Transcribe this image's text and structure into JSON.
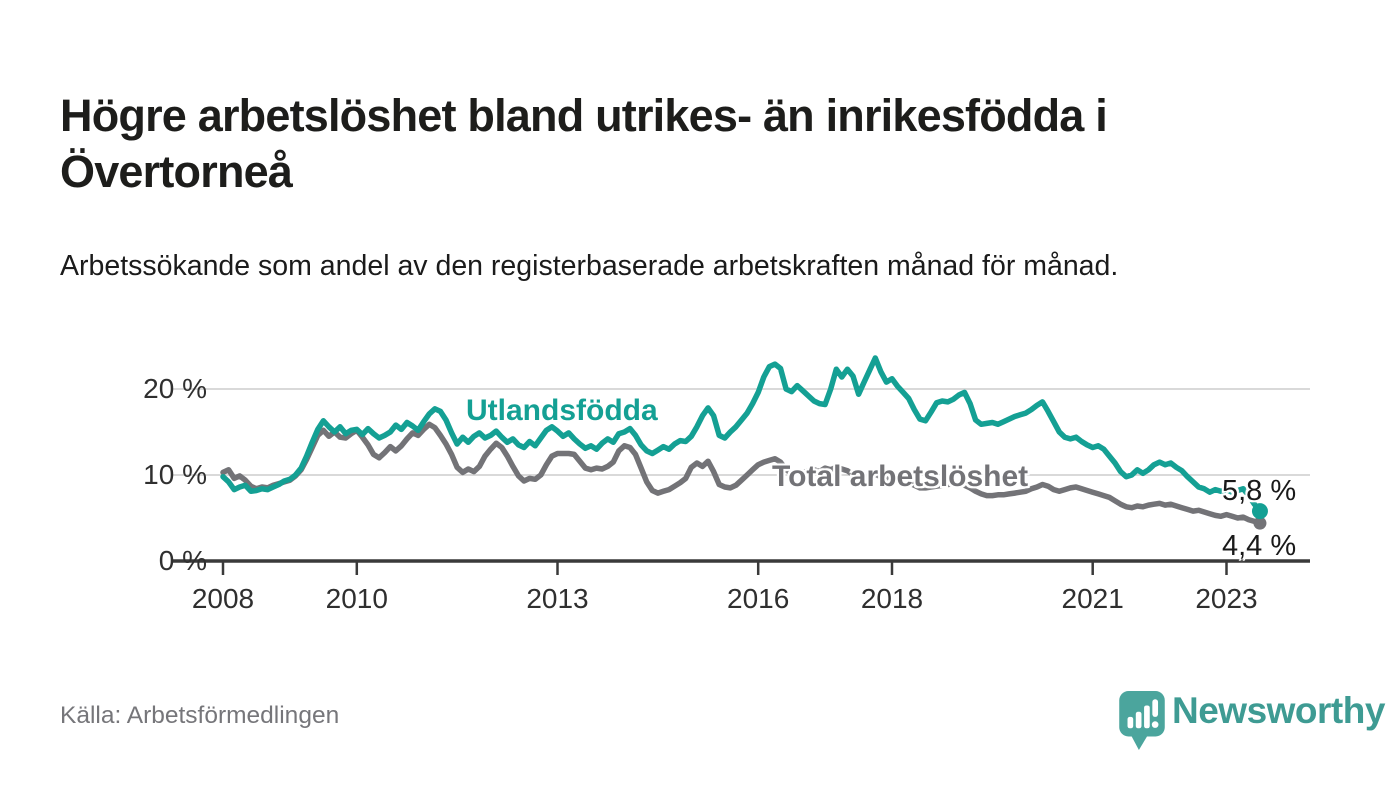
{
  "header": {
    "title": "Högre arbetslöshet bland utrikes- än inrikesfödda i Övertorneå",
    "subtitle": "Arbetssökande som andel av den registerbaserade arbetskraften månad för månad."
  },
  "footer": {
    "source": "Källa: Arbetsförmedlingen",
    "brand": "Newsworthy",
    "logo_icon": "newsworthy-speech-bubble-bar-chart-icon",
    "brand_color": "#3e9b93",
    "logo_color": "#4ba59d"
  },
  "chart_data": {
    "type": "line",
    "title": "Högre arbetslöshet bland utrikes- än inrikesfödda i Övertorneå",
    "xlabel": "",
    "ylabel": "",
    "unit": "%",
    "x_unit": "month",
    "x_range": [
      "2008-01",
      "2023-07"
    ],
    "x_ticks": [
      2008,
      2010,
      2013,
      2016,
      2018,
      2021,
      2023
    ],
    "y_ticks": [
      {
        "value": 20,
        "label": "20 %"
      },
      {
        "value": 10,
        "label": "10 %"
      },
      {
        "value": 0,
        "label": "0 %"
      }
    ],
    "ylim": [
      0,
      24
    ],
    "grid": "horizontal",
    "legend_position": "inline-labels",
    "axis_color": "#3a3a3a",
    "gridline_color": "#d9d9d9",
    "series": [
      {
        "name": "Utlandsfödda",
        "color": "#14a094",
        "end_label": "5,8 %",
        "end_value": 5.8,
        "values": [
          9.8,
          9.2,
          8.3,
          8.6,
          8.8,
          8.1,
          8.2,
          8.4,
          8.3,
          8.6,
          8.9,
          9.3,
          9.5,
          10.0,
          10.8,
          12.2,
          13.8,
          15.3,
          16.3,
          15.6,
          15.0,
          15.6,
          14.8,
          15.2,
          15.3,
          14.7,
          15.4,
          14.8,
          14.3,
          14.6,
          15.0,
          15.8,
          15.3,
          16.1,
          15.7,
          15.2,
          16.2,
          17.1,
          17.7,
          17.4,
          16.4,
          14.9,
          13.6,
          14.4,
          13.8,
          14.5,
          14.9,
          14.3,
          14.6,
          15.1,
          14.4,
          13.8,
          14.2,
          13.5,
          13.2,
          13.9,
          13.4,
          14.3,
          15.2,
          15.6,
          15.1,
          14.5,
          14.9,
          14.2,
          13.6,
          13.1,
          13.4,
          13.0,
          13.7,
          14.2,
          13.8,
          14.8,
          15.0,
          15.4,
          14.6,
          13.5,
          12.8,
          12.5,
          12.9,
          13.3,
          13.0,
          13.6,
          14.0,
          13.9,
          14.5,
          15.6,
          16.9,
          17.8,
          16.9,
          14.6,
          14.3,
          15.0,
          15.6,
          16.4,
          17.2,
          18.3,
          19.6,
          21.4,
          22.6,
          22.9,
          22.4,
          20.0,
          19.7,
          20.4,
          19.8,
          19.2,
          18.6,
          18.3,
          18.2,
          20.0,
          22.3,
          21.4,
          22.3,
          21.5,
          19.4,
          20.8,
          22.2,
          23.6,
          22.0,
          20.8,
          21.2,
          20.3,
          19.6,
          18.9,
          17.6,
          16.5,
          16.3,
          17.3,
          18.4,
          18.6,
          18.5,
          18.8,
          19.3,
          19.6,
          18.3,
          16.4,
          15.9,
          16.0,
          16.1,
          15.9,
          16.2,
          16.5,
          16.8,
          17.0,
          17.2,
          17.6,
          18.1,
          18.5,
          17.4,
          16.2,
          15.0,
          14.4,
          14.2,
          14.4,
          13.9,
          13.5,
          13.2,
          13.4,
          13.0,
          12.2,
          11.4,
          10.4,
          9.8,
          10.0,
          10.6,
          10.2,
          10.6,
          11.2,
          11.5,
          11.2,
          11.4,
          10.9,
          10.5,
          9.8,
          9.2,
          8.6,
          8.4,
          8.0,
          8.3,
          8.1,
          8.3,
          8.0,
          8.2,
          8.4,
          7.6,
          6.6,
          5.8
        ]
      },
      {
        "name": "Total arbetslöshet",
        "color": "#737377",
        "end_label": "4,4 %",
        "end_value": 4.4,
        "values": [
          10.3,
          10.6,
          9.6,
          9.9,
          9.4,
          8.7,
          8.4,
          8.6,
          8.5,
          8.8,
          9.0,
          9.2,
          9.4,
          9.9,
          10.6,
          11.8,
          13.2,
          14.6,
          15.2,
          14.5,
          15.0,
          14.4,
          14.3,
          14.8,
          15.2,
          14.4,
          13.5,
          12.4,
          12.0,
          12.6,
          13.3,
          12.8,
          13.4,
          14.2,
          14.9,
          14.6,
          15.3,
          15.9,
          15.5,
          14.6,
          13.6,
          12.4,
          10.9,
          10.3,
          10.7,
          10.4,
          11.0,
          12.2,
          13.0,
          13.7,
          13.2,
          12.2,
          11.0,
          9.9,
          9.3,
          9.6,
          9.5,
          10.0,
          11.2,
          12.2,
          12.5,
          12.5,
          12.5,
          12.4,
          11.6,
          10.8,
          10.6,
          10.8,
          10.7,
          11.0,
          11.5,
          12.8,
          13.4,
          13.2,
          12.4,
          10.8,
          9.2,
          8.2,
          7.9,
          8.1,
          8.3,
          8.7,
          9.1,
          9.6,
          10.9,
          11.4,
          11.0,
          11.6,
          10.4,
          8.9,
          8.6,
          8.5,
          8.8,
          9.4,
          10.0,
          10.6,
          11.2,
          11.5,
          11.7,
          11.9,
          11.5,
          10.6,
          10.2,
          10.4,
          10.3,
          10.5,
          10.6,
          10.4,
          10.8,
          10.6,
          10.9,
          10.7,
          10.5,
          10.0,
          9.5,
          9.7,
          9.9,
          10.1,
          9.8,
          9.6,
          9.7,
          9.6,
          9.4,
          9.1,
          8.8,
          8.5,
          8.5,
          8.6,
          8.7,
          8.8,
          8.9,
          9.0,
          9.0,
          8.8,
          8.5,
          8.1,
          7.8,
          7.6,
          7.6,
          7.7,
          7.7,
          7.8,
          7.9,
          8.0,
          8.1,
          8.4,
          8.6,
          8.9,
          8.7,
          8.3,
          8.1,
          8.3,
          8.5,
          8.6,
          8.4,
          8.2,
          8.0,
          7.8,
          7.6,
          7.4,
          7.0,
          6.6,
          6.3,
          6.2,
          6.4,
          6.3,
          6.5,
          6.6,
          6.7,
          6.5,
          6.6,
          6.4,
          6.2,
          6.0,
          5.8,
          5.9,
          5.7,
          5.5,
          5.3,
          5.2,
          5.4,
          5.2,
          5.0,
          5.1,
          4.8,
          4.6,
          4.4
        ]
      }
    ]
  }
}
